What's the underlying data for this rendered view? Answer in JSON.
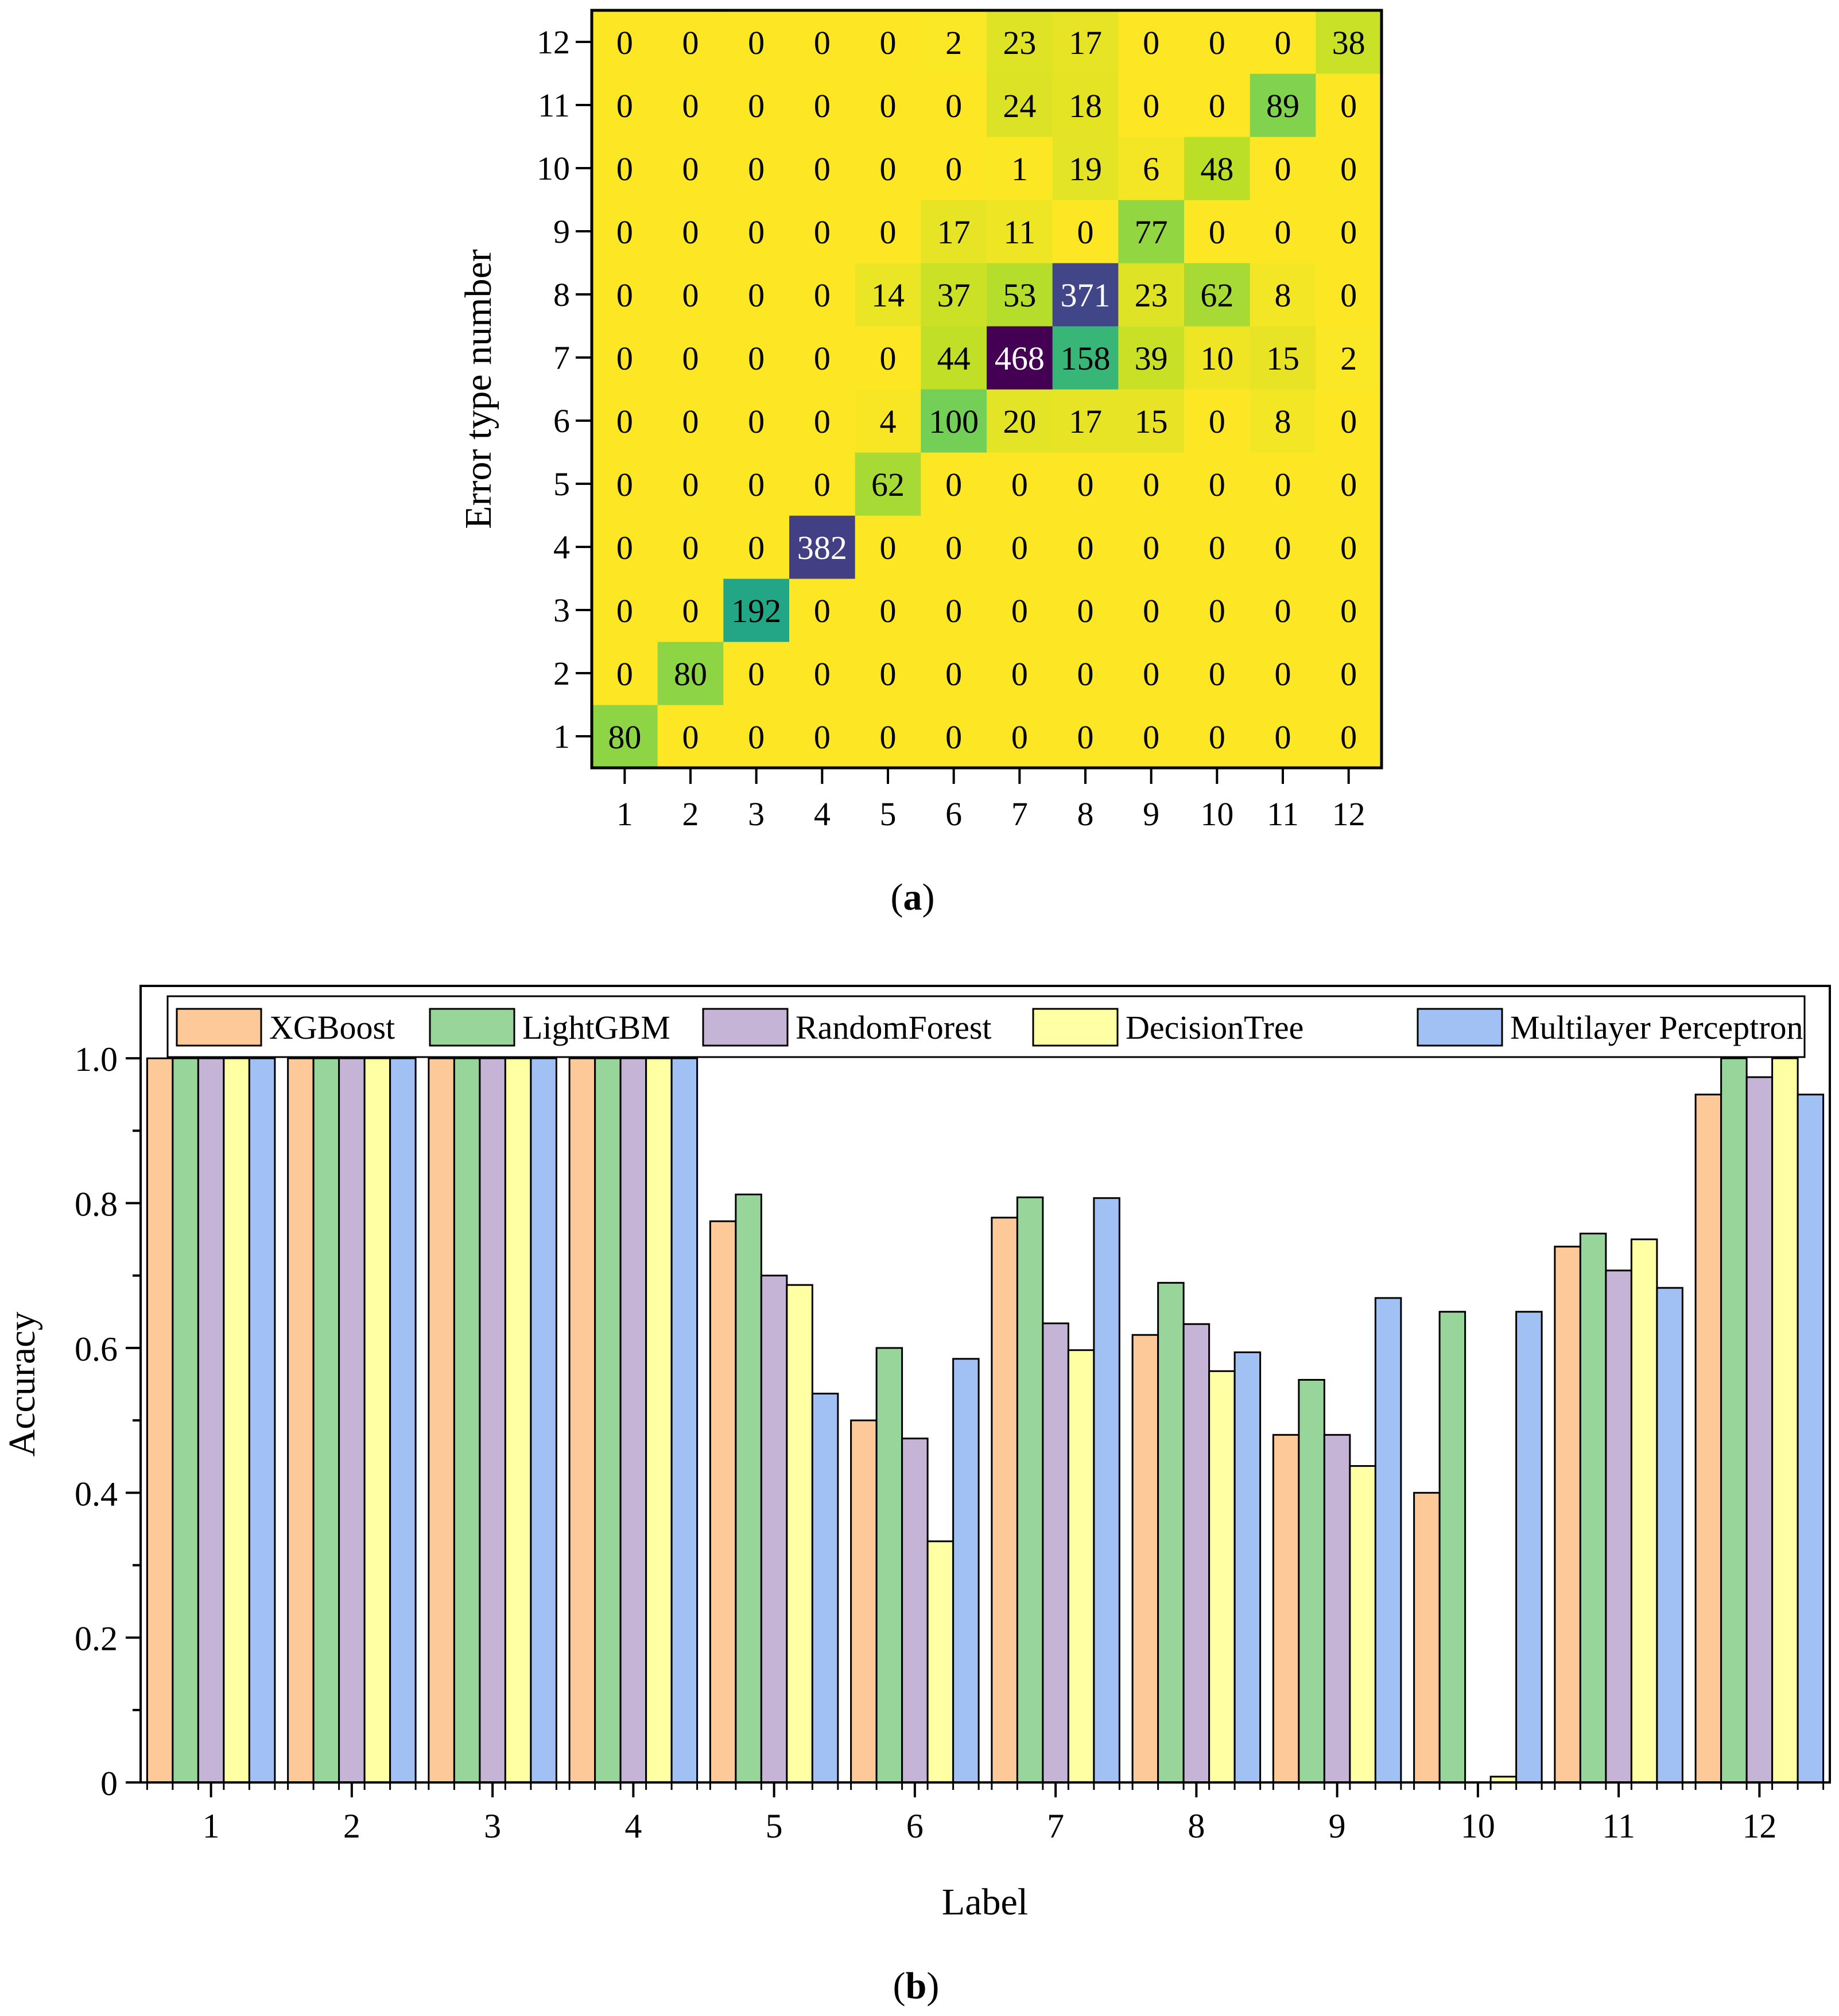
{
  "chart_data": [
    {
      "type": "heatmap",
      "panel_label": "a",
      "title": "",
      "xlabel": "",
      "ylabel": "Error type number",
      "x_categories": [
        "1",
        "2",
        "3",
        "4",
        "5",
        "6",
        "7",
        "8",
        "9",
        "10",
        "11",
        "12"
      ],
      "y_categories": [
        "1",
        "2",
        "3",
        "4",
        "5",
        "6",
        "7",
        "8",
        "9",
        "10",
        "11",
        "12"
      ],
      "colormap": "viridis",
      "value_range": [
        0,
        468
      ],
      "matrix": [
        [
          80,
          0,
          0,
          0,
          0,
          0,
          0,
          0,
          0,
          0,
          0,
          0
        ],
        [
          0,
          80,
          0,
          0,
          0,
          0,
          0,
          0,
          0,
          0,
          0,
          0
        ],
        [
          0,
          0,
          192,
          0,
          0,
          0,
          0,
          0,
          0,
          0,
          0,
          0
        ],
        [
          0,
          0,
          0,
          382,
          0,
          0,
          0,
          0,
          0,
          0,
          0,
          0
        ],
        [
          0,
          0,
          0,
          0,
          62,
          0,
          0,
          0,
          0,
          0,
          0,
          0
        ],
        [
          0,
          0,
          0,
          0,
          4,
          100,
          20,
          17,
          15,
          0,
          8,
          0
        ],
        [
          0,
          0,
          0,
          0,
          0,
          44,
          468,
          158,
          39,
          10,
          15,
          2
        ],
        [
          0,
          0,
          0,
          0,
          14,
          37,
          53,
          371,
          23,
          62,
          8,
          0
        ],
        [
          0,
          0,
          0,
          0,
          0,
          17,
          11,
          0,
          77,
          0,
          0,
          0
        ],
        [
          0,
          0,
          0,
          0,
          0,
          0,
          1,
          19,
          6,
          48,
          0,
          0
        ],
        [
          0,
          0,
          0,
          0,
          0,
          0,
          24,
          18,
          0,
          0,
          89,
          0
        ],
        [
          0,
          0,
          0,
          0,
          0,
          2,
          23,
          17,
          0,
          0,
          0,
          38
        ]
      ]
    },
    {
      "type": "bar",
      "panel_label": "b",
      "title": "",
      "xlabel": "Label",
      "ylabel": "Accuracy",
      "ylim": [
        0,
        1.1
      ],
      "yticks": [
        "0",
        "0.2",
        "0.4",
        "0.6",
        "0.8",
        "1.0"
      ],
      "legend_position": "top",
      "categories": [
        "1",
        "2",
        "3",
        "4",
        "5",
        "6",
        "7",
        "8",
        "9",
        "10",
        "11",
        "12"
      ],
      "series": [
        {
          "name": "XGBoost",
          "color": "#FDC998",
          "values": [
            1.0,
            1.0,
            1.0,
            1.0,
            0.775,
            0.5,
            0.78,
            0.618,
            0.48,
            0.4,
            0.74,
            0.95
          ]
        },
        {
          "name": "LightGBM",
          "color": "#98D59A",
          "values": [
            1.0,
            1.0,
            1.0,
            1.0,
            0.812,
            0.6,
            0.808,
            0.69,
            0.556,
            0.65,
            0.758,
            1.0
          ]
        },
        {
          "name": "RandomForest",
          "color": "#C6B4D7",
          "values": [
            1.0,
            1.0,
            1.0,
            1.0,
            0.7,
            0.475,
            0.634,
            0.633,
            0.48,
            0.0,
            0.707,
            0.974
          ]
        },
        {
          "name": "DecisionTree",
          "color": "#FFFFA4",
          "values": [
            1.0,
            1.0,
            1.0,
            1.0,
            0.687,
            0.333,
            0.597,
            0.568,
            0.437,
            0.008,
            0.75,
            1.0
          ]
        },
        {
          "name": "Multilayer Perceptron",
          "color": "#A1C0F3",
          "values": [
            1.0,
            1.0,
            1.0,
            1.0,
            0.537,
            0.585,
            0.807,
            0.594,
            0.669,
            0.65,
            0.683,
            0.95
          ]
        }
      ]
    }
  ]
}
